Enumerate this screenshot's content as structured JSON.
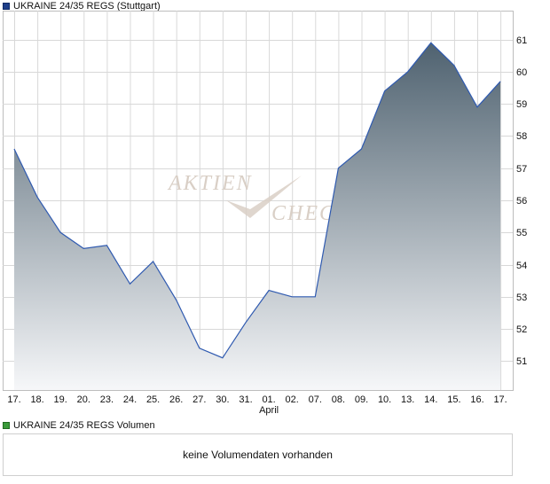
{
  "colors": {
    "price_legend": "#1f3f8a",
    "volume_legend": "#3a9a3a",
    "line": "#2f5ab0",
    "fill_top": "#4f6270",
    "fill_bottom": "#f6f7f9",
    "grid": "#d8d8d8",
    "watermark": "#d9cfc6"
  },
  "price_legend": "UKRAINE 24/35 REGS (Stuttgart)",
  "volume_legend": "UKRAINE 24/35 REGS Volumen",
  "volume_message": "keine Volumendaten vorhanden",
  "watermark": {
    "word1": "Aktien",
    "word2": "Check"
  },
  "chart_data": {
    "type": "area",
    "title": "UKRAINE 24/35 REGS (Stuttgart)",
    "series": [
      {
        "name": "UKRAINE 24/35 REGS (Stuttgart)",
        "values": [
          57.6,
          56.1,
          55.0,
          54.5,
          54.6,
          53.4,
          54.1,
          52.9,
          51.4,
          51.1,
          52.2,
          53.2,
          53.0,
          53.0,
          57.0,
          57.6,
          59.4,
          60.0,
          60.9,
          60.2,
          58.9,
          59.7
        ]
      }
    ],
    "categories": [
      "17.",
      "18.",
      "19.",
      "20.",
      "23.",
      "24.",
      "25.",
      "26.",
      "27.",
      "30.",
      "31.",
      "01.",
      "02.",
      "07.",
      "08.",
      "09.",
      "10.",
      "13.",
      "14.",
      "15.",
      "16.",
      "17."
    ],
    "month_label": "April",
    "month_label_index": 11,
    "yticks": [
      51,
      52,
      53,
      54,
      55,
      56,
      57,
      58,
      59,
      60,
      61
    ],
    "ylim": [
      50.1,
      61.9
    ],
    "grid": true,
    "y_axis_position": "right",
    "legend": "top-left"
  }
}
